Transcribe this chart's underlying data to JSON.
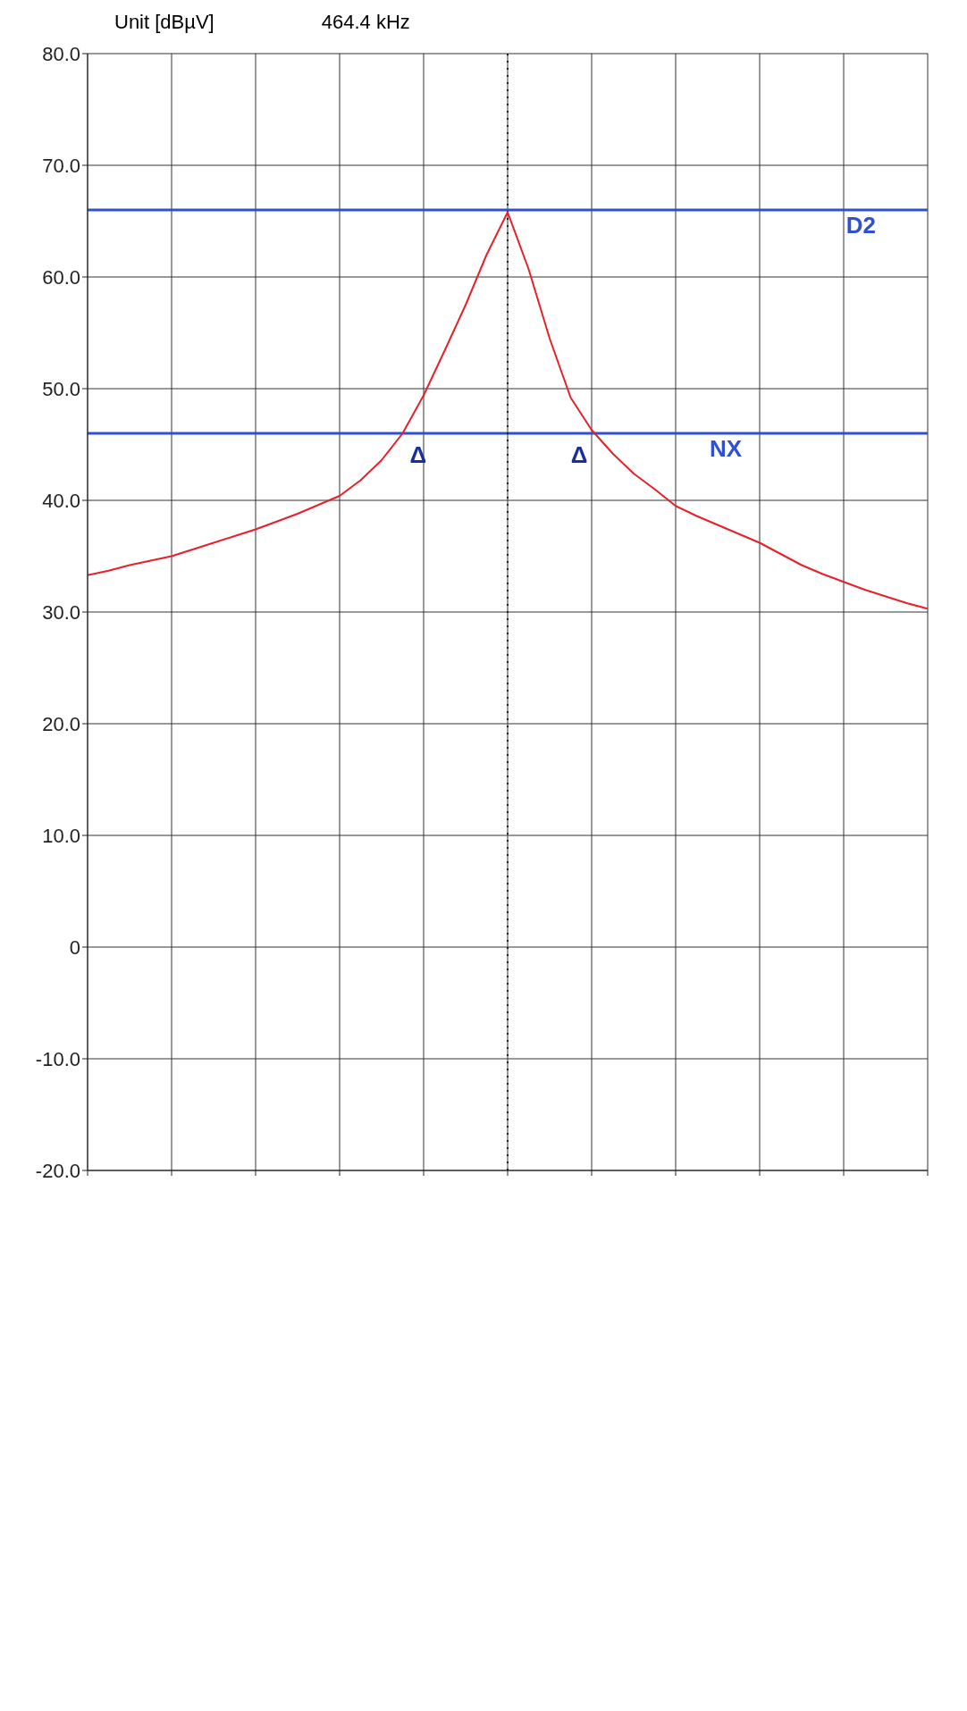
{
  "chart_data": {
    "type": "line",
    "categories": [
      null,
      null,
      null,
      null,
      null,
      null,
      null,
      null,
      null,
      null,
      null,
      null,
      null,
      null,
      null,
      null,
      null,
      null,
      null,
      null,
      null,
      null,
      null,
      null,
      null,
      null,
      null,
      null,
      null,
      null,
      null,
      null,
      null,
      null,
      null,
      null,
      null,
      null,
      null,
      null,
      null
    ],
    "series": [
      {
        "color": "#e8202a",
        "values": [
          33.3,
          33.7,
          34.2,
          34.6,
          35,
          35.6,
          36.2,
          36.8,
          37.4,
          38.1,
          38.8,
          39.6,
          40.4,
          41.8,
          43.6,
          46,
          49.4,
          53.4,
          57.5,
          62,
          65.8,
          60.7,
          54.5,
          49.2,
          46.3,
          44.2,
          42.4,
          41,
          39.5,
          38.6,
          37.8,
          37,
          36.2,
          35.2,
          34.2,
          33.4,
          32.7,
          32,
          31.4,
          30.8,
          30.3
        ]
      }
    ],
    "ylim": [
      -20,
      80
    ],
    "yticks": [
      {
        "value": -20,
        "label": "-20.0"
      },
      {
        "value": -10,
        "label": "-10.0"
      },
      0,
      {
        "value": 10,
        "label": "10.0"
      },
      {
        "value": 20,
        "label": "20.0"
      },
      {
        "value": 30,
        "label": "30.0"
      },
      {
        "value": 40,
        "label": "40.0"
      },
      {
        "value": 50,
        "label": "50.0"
      },
      {
        "value": 60,
        "label": "60.0"
      },
      {
        "value": 70,
        "label": "70.0"
      },
      {
        "value": 80,
        "label": "80.0"
      }
    ],
    "grid": true,
    "marker": "none",
    "line_style": "solid",
    "ref_lines": [
      {
        "axis": "y",
        "value": 66,
        "label": "D2",
        "color": "#3050d0"
      },
      {
        "axis": "y",
        "value": 46,
        "label": "NX",
        "color": "#3050d0"
      }
    ],
    "annotations": [
      {
        "text": "Δ",
        "y": 46
      },
      {
        "text": "Δ",
        "y": 46
      },
      "Unit [dBµV]",
      "464.4 kHz"
    ]
  }
}
